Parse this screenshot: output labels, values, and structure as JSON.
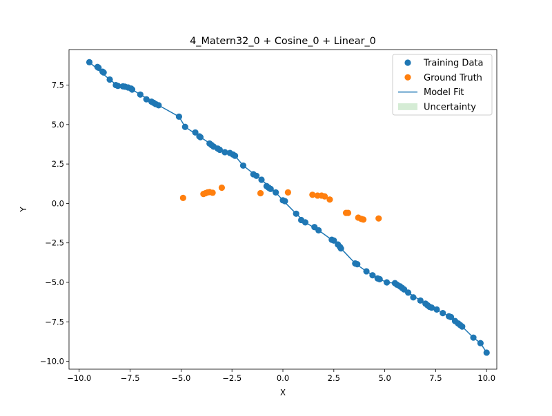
{
  "chart_data": {
    "type": "scatter",
    "title": "4_Matern32_0 + Cosine_0 + Linear_0",
    "xlabel": "X",
    "ylabel": "Y",
    "xlim": [
      -10.5,
      10.5
    ],
    "ylim": [
      -10.5,
      9.75
    ],
    "x_ticks": [
      -10,
      -7.5,
      -5,
      -2.5,
      0,
      2.5,
      5,
      7.5,
      10
    ],
    "x_tick_labels": [
      "−10.0",
      "−7.5",
      "−5.0",
      "−2.5",
      "0.0",
      "2.5",
      "5.0",
      "7.5",
      "10.0"
    ],
    "y_ticks": [
      -10,
      -7.5,
      -5,
      -2.5,
      0,
      2.5,
      5,
      7.5
    ],
    "y_tick_labels": [
      "−10.0",
      "−7.5",
      "−5.0",
      "−2.5",
      "0.0",
      "2.5",
      "5.0",
      "7.5"
    ],
    "grid": false,
    "legend_position": "top-right",
    "legend": [
      {
        "label": "Training Data",
        "kind": "marker",
        "color": "#1f77b4"
      },
      {
        "label": "Ground Truth",
        "kind": "marker",
        "color": "#ff7f0e"
      },
      {
        "label": "Model Fit",
        "kind": "line",
        "color": "#1f77b4"
      },
      {
        "label": "Uncertainty",
        "kind": "patch",
        "color": "#2ca02c"
      }
    ],
    "series": [
      {
        "name": "Training Data",
        "color": "#1f77b4",
        "points": [
          [
            -9.5,
            8.95
          ],
          [
            -9.1,
            8.65
          ],
          [
            -9.05,
            8.6
          ],
          [
            -8.85,
            8.35
          ],
          [
            -8.8,
            8.3
          ],
          [
            -8.5,
            7.85
          ],
          [
            -8.2,
            7.5
          ],
          [
            -8.1,
            7.45
          ],
          [
            -7.85,
            7.42
          ],
          [
            -7.75,
            7.4
          ],
          [
            -7.6,
            7.35
          ],
          [
            -7.45,
            7.28
          ],
          [
            -7.4,
            7.22
          ],
          [
            -7.0,
            6.9
          ],
          [
            -6.7,
            6.6
          ],
          [
            -6.45,
            6.45
          ],
          [
            -6.35,
            6.38
          ],
          [
            -6.25,
            6.3
          ],
          [
            -6.1,
            6.22
          ],
          [
            -5.1,
            5.5
          ],
          [
            -4.8,
            4.85
          ],
          [
            -4.3,
            4.5
          ],
          [
            -4.1,
            4.25
          ],
          [
            -4.05,
            4.2
          ],
          [
            -3.6,
            3.8
          ],
          [
            -3.5,
            3.7
          ],
          [
            -3.4,
            3.6
          ],
          [
            -3.2,
            3.48
          ],
          [
            -3.1,
            3.4
          ],
          [
            -2.85,
            3.25
          ],
          [
            -2.6,
            3.2
          ],
          [
            -2.45,
            3.1
          ],
          [
            -2.35,
            3.02
          ],
          [
            -1.95,
            2.4
          ],
          [
            -1.45,
            1.85
          ],
          [
            -1.3,
            1.75
          ],
          [
            -1.05,
            1.5
          ],
          [
            -0.8,
            1.1
          ],
          [
            -0.7,
            1.0
          ],
          [
            -0.6,
            0.92
          ],
          [
            -0.35,
            0.7
          ],
          [
            0.0,
            0.2
          ],
          [
            0.1,
            0.15
          ],
          [
            0.65,
            -0.65
          ],
          [
            0.9,
            -1.05
          ],
          [
            1.1,
            -1.2
          ],
          [
            1.55,
            -1.5
          ],
          [
            1.75,
            -1.7
          ],
          [
            2.4,
            -2.3
          ],
          [
            2.5,
            -2.35
          ],
          [
            2.7,
            -2.6
          ],
          [
            2.8,
            -2.75
          ],
          [
            2.85,
            -2.85
          ],
          [
            3.55,
            -3.8
          ],
          [
            3.65,
            -3.85
          ],
          [
            4.1,
            -4.3
          ],
          [
            4.4,
            -4.55
          ],
          [
            4.65,
            -4.75
          ],
          [
            4.75,
            -4.8
          ],
          [
            5.1,
            -5.0
          ],
          [
            5.5,
            -5.05
          ],
          [
            5.6,
            -5.15
          ],
          [
            5.75,
            -5.25
          ],
          [
            5.85,
            -5.35
          ],
          [
            5.95,
            -5.45
          ],
          [
            6.15,
            -5.65
          ],
          [
            6.4,
            -5.95
          ],
          [
            6.75,
            -6.15
          ],
          [
            7.0,
            -6.35
          ],
          [
            7.1,
            -6.45
          ],
          [
            7.2,
            -6.55
          ],
          [
            7.3,
            -6.6
          ],
          [
            7.55,
            -6.72
          ],
          [
            7.85,
            -6.95
          ],
          [
            8.15,
            -7.15
          ],
          [
            8.25,
            -7.2
          ],
          [
            8.45,
            -7.45
          ],
          [
            8.6,
            -7.6
          ],
          [
            8.7,
            -7.7
          ],
          [
            8.8,
            -7.8
          ],
          [
            9.35,
            -8.5
          ],
          [
            9.7,
            -8.85
          ],
          [
            10.0,
            -9.45
          ]
        ]
      },
      {
        "name": "Ground Truth",
        "color": "#ff7f0e",
        "points": [
          [
            -4.9,
            0.35
          ],
          [
            -3.9,
            0.6
          ],
          [
            -3.8,
            0.65
          ],
          [
            -3.7,
            0.7
          ],
          [
            -3.6,
            0.72
          ],
          [
            -3.45,
            0.68
          ],
          [
            -3.0,
            1.0
          ],
          [
            -1.1,
            0.65
          ],
          [
            0.25,
            0.7
          ],
          [
            1.45,
            0.55
          ],
          [
            1.7,
            0.5
          ],
          [
            1.9,
            0.5
          ],
          [
            2.05,
            0.45
          ],
          [
            2.3,
            0.25
          ],
          [
            3.1,
            -0.6
          ],
          [
            3.2,
            -0.6
          ],
          [
            3.7,
            -0.9
          ],
          [
            3.85,
            -0.98
          ],
          [
            3.95,
            -1.02
          ],
          [
            4.7,
            -0.95
          ]
        ]
      },
      {
        "name": "Model Fit",
        "color": "#1f77b4",
        "points": [
          [
            -9.5,
            8.95
          ],
          [
            -8.5,
            7.85
          ],
          [
            -8.1,
            7.45
          ],
          [
            -7.4,
            7.22
          ],
          [
            -7.0,
            6.9
          ],
          [
            -6.1,
            6.22
          ],
          [
            -5.1,
            5.5
          ],
          [
            -4.8,
            4.85
          ],
          [
            -4.05,
            4.2
          ],
          [
            -3.1,
            3.4
          ],
          [
            -2.35,
            3.02
          ],
          [
            -1.95,
            2.4
          ],
          [
            -1.05,
            1.5
          ],
          [
            -0.35,
            0.7
          ],
          [
            0.0,
            0.2
          ],
          [
            0.65,
            -0.65
          ],
          [
            1.1,
            -1.2
          ],
          [
            1.75,
            -1.7
          ],
          [
            2.4,
            -2.3
          ],
          [
            2.85,
            -2.85
          ],
          [
            3.55,
            -3.8
          ],
          [
            4.1,
            -4.3
          ],
          [
            4.75,
            -4.8
          ],
          [
            5.1,
            -5.0
          ],
          [
            5.5,
            -5.05
          ],
          [
            6.15,
            -5.65
          ],
          [
            7.0,
            -6.35
          ],
          [
            7.55,
            -6.72
          ],
          [
            8.15,
            -7.15
          ],
          [
            8.8,
            -7.8
          ],
          [
            9.35,
            -8.5
          ],
          [
            9.7,
            -8.85
          ],
          [
            10.0,
            -9.45
          ]
        ]
      }
    ]
  }
}
